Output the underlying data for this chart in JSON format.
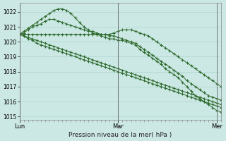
{
  "title": "Pression niveau de la mer( hPa )",
  "xlabel_lun": "Lun",
  "xlabel_mar": "Mar",
  "xlabel_mer": "Mer",
  "ylim": [
    1014.8,
    1022.6
  ],
  "yticks": [
    1015,
    1016,
    1017,
    1018,
    1019,
    1020,
    1021,
    1022
  ],
  "bg_color": "#cce8e4",
  "grid_color": "#aad4ce",
  "line_color": "#2d6a2d",
  "series": [
    {
      "x": [
        0,
        1,
        2,
        3,
        4,
        5,
        6,
        7,
        8,
        9,
        10,
        11,
        12,
        13,
        14,
        15,
        16,
        17,
        18,
        19,
        20,
        21,
        22,
        23,
        24,
        25,
        26,
        27,
        28,
        29,
        30,
        31,
        32,
        33,
        34,
        35,
        36,
        37,
        38,
        39,
        40,
        41,
        42,
        43,
        44,
        45,
        46,
        47
      ],
      "y": [
        1020.5,
        1020.7,
        1020.9,
        1021.1,
        1021.3,
        1021.5,
        1021.7,
        1021.9,
        1022.1,
        1022.2,
        1022.2,
        1022.1,
        1021.9,
        1021.6,
        1021.3,
        1021.0,
        1020.8,
        1020.6,
        1020.5,
        1020.4,
        1020.3,
        1020.2,
        1020.2,
        1020.1,
        1020.1,
        1020.0,
        1019.9,
        1019.8,
        1019.5,
        1019.3,
        1019.1,
        1018.9,
        1018.7,
        1018.5,
        1018.2,
        1018.0,
        1017.8,
        1017.6,
        1017.3,
        1017.0,
        1016.7,
        1016.4,
        1016.2,
        1016.0,
        1015.8,
        1015.6,
        1015.4,
        1015.3
      ]
    },
    {
      "x": [
        0,
        1,
        2,
        3,
        4,
        5,
        6,
        7,
        8,
        9,
        10,
        11,
        12,
        13,
        14,
        15,
        16,
        17,
        18,
        19,
        20,
        21,
        22,
        23,
        24,
        25,
        26,
        27,
        28,
        29,
        30,
        31,
        32,
        33,
        34,
        35,
        36,
        37,
        38,
        39,
        40,
        41,
        42,
        43,
        44,
        45,
        46,
        47
      ],
      "y": [
        1020.5,
        1020.6,
        1020.8,
        1021.0,
        1021.1,
        1021.2,
        1021.4,
        1021.5,
        1021.5,
        1021.4,
        1021.3,
        1021.2,
        1021.1,
        1021.0,
        1020.9,
        1020.8,
        1020.7,
        1020.7,
        1020.6,
        1020.5,
        1020.5,
        1020.4,
        1020.4,
        1020.3,
        1020.2,
        1020.1,
        1020.0,
        1019.9,
        1019.7,
        1019.5,
        1019.3,
        1019.1,
        1018.9,
        1018.7,
        1018.5,
        1018.3,
        1018.1,
        1017.9,
        1017.7,
        1017.4,
        1017.2,
        1017.0,
        1016.8,
        1016.6,
        1016.4,
        1016.3,
        1016.2,
        1016.1
      ]
    },
    {
      "x": [
        0,
        1,
        2,
        3,
        4,
        5,
        6,
        7,
        8,
        9,
        10,
        11,
        12,
        13,
        14,
        15,
        16,
        17,
        18,
        19,
        20,
        21,
        22,
        23,
        24,
        25,
        26,
        27,
        28,
        29,
        30,
        31,
        32,
        33,
        34,
        35,
        36,
        37,
        38,
        39,
        40,
        41,
        42,
        43,
        44,
        45,
        46,
        47
      ],
      "y": [
        1020.5,
        1020.5,
        1020.5,
        1020.5,
        1020.5,
        1020.5,
        1020.5,
        1020.5,
        1020.5,
        1020.5,
        1020.5,
        1020.5,
        1020.5,
        1020.5,
        1020.5,
        1020.5,
        1020.5,
        1020.5,
        1020.5,
        1020.5,
        1020.5,
        1020.5,
        1020.6,
        1020.7,
        1020.8,
        1020.8,
        1020.8,
        1020.7,
        1020.6,
        1020.5,
        1020.4,
        1020.2,
        1020.0,
        1019.8,
        1019.6,
        1019.4,
        1019.2,
        1019.0,
        1018.8,
        1018.6,
        1018.4,
        1018.2,
        1018.0,
        1017.8,
        1017.6,
        1017.4,
        1017.2,
        1017.0
      ]
    },
    {
      "x": [
        0,
        1,
        2,
        3,
        4,
        5,
        6,
        7,
        8,
        9,
        10,
        11,
        12,
        13,
        14,
        15,
        16,
        17,
        18,
        19,
        20,
        21,
        22,
        23,
        24,
        25,
        26,
        27,
        28,
        29,
        30,
        31,
        32,
        33,
        34,
        35,
        36,
        37,
        38,
        39,
        40,
        41,
        42,
        43,
        44,
        45,
        46,
        47
      ],
      "y": [
        1020.5,
        1020.4,
        1020.3,
        1020.2,
        1020.1,
        1020.0,
        1019.9,
        1019.8,
        1019.7,
        1019.6,
        1019.5,
        1019.4,
        1019.3,
        1019.2,
        1019.1,
        1019.0,
        1018.9,
        1018.8,
        1018.7,
        1018.6,
        1018.5,
        1018.4,
        1018.3,
        1018.2,
        1018.1,
        1018.0,
        1017.9,
        1017.8,
        1017.7,
        1017.6,
        1017.5,
        1017.4,
        1017.3,
        1017.2,
        1017.1,
        1017.0,
        1016.9,
        1016.8,
        1016.7,
        1016.6,
        1016.5,
        1016.4,
        1016.3,
        1016.2,
        1016.1,
        1016.0,
        1015.9,
        1015.8
      ]
    },
    {
      "x": [
        0,
        1,
        2,
        3,
        4,
        5,
        6,
        7,
        8,
        9,
        10,
        11,
        12,
        13,
        14,
        15,
        16,
        17,
        18,
        19,
        20,
        21,
        22,
        23,
        24,
        25,
        26,
        27,
        28,
        29,
        30,
        31,
        32,
        33,
        34,
        35,
        36,
        37,
        38,
        39,
        40,
        41,
        42,
        43,
        44,
        45,
        46,
        47
      ],
      "y": [
        1020.5,
        1020.4,
        1020.2,
        1020.1,
        1019.9,
        1019.8,
        1019.7,
        1019.6,
        1019.5,
        1019.4,
        1019.3,
        1019.2,
        1019.1,
        1019.0,
        1018.9,
        1018.8,
        1018.7,
        1018.6,
        1018.5,
        1018.4,
        1018.3,
        1018.2,
        1018.1,
        1018.0,
        1017.9,
        1017.8,
        1017.7,
        1017.6,
        1017.5,
        1017.4,
        1017.3,
        1017.2,
        1017.1,
        1017.0,
        1016.9,
        1016.8,
        1016.7,
        1016.6,
        1016.5,
        1016.4,
        1016.3,
        1016.2,
        1016.1,
        1016.0,
        1015.9,
        1015.8,
        1015.7,
        1015.6
      ]
    }
  ]
}
